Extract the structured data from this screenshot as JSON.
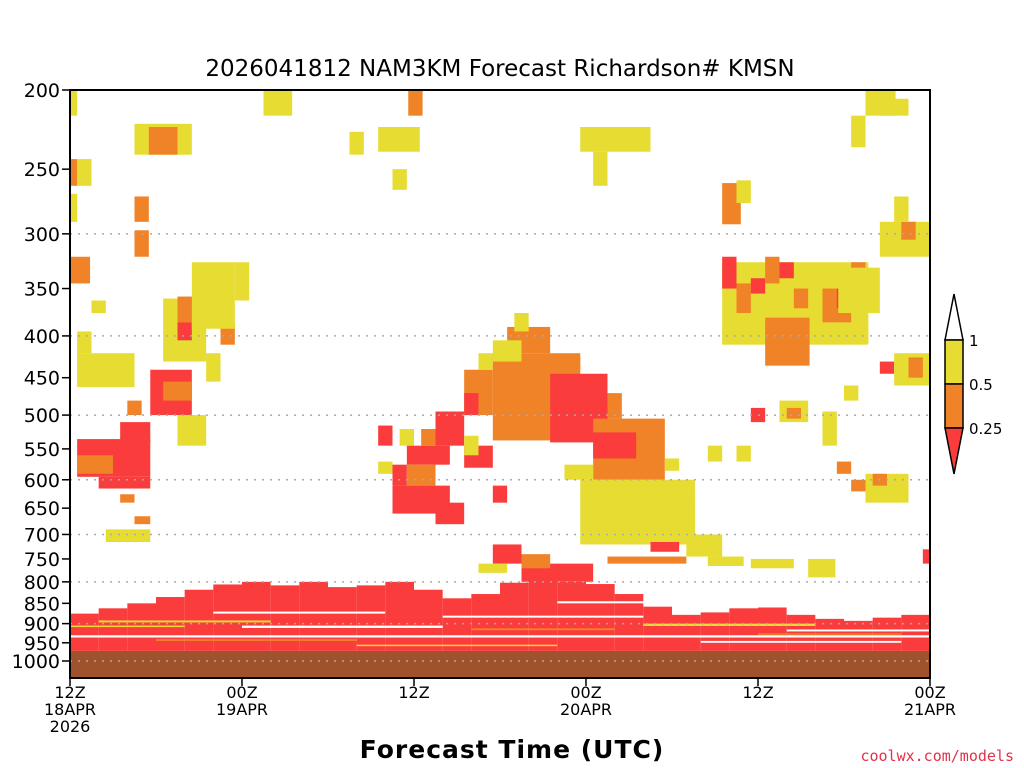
{
  "chart_data": {
    "type": "heatmap",
    "title": "2026041812 NAM3KM Forecast Richardson# KMSN",
    "xlabel": "Forecast Time (UTC)",
    "ylabel": "",
    "credit": "coolwx.com/models",
    "x_units": "forecast hour",
    "xlim": [
      0,
      60
    ],
    "ylim": [
      200,
      1049
    ],
    "y_scale": "log",
    "y_ticks": [
      "200",
      "250",
      "300",
      "350",
      "400",
      "450",
      "500",
      "550",
      "600",
      "650",
      "700",
      "750",
      "800",
      "850",
      "900",
      "950",
      "1000"
    ],
    "y_tick_values": [
      200,
      250,
      300,
      350,
      400,
      450,
      500,
      550,
      600,
      650,
      700,
      750,
      800,
      850,
      900,
      950,
      1000
    ],
    "grid_pressures": [
      300,
      400,
      500,
      600,
      700,
      800,
      900,
      1000
    ],
    "x_ticks": [
      {
        "hour": 0,
        "label": [
          "12Z",
          "18APR",
          "2026"
        ]
      },
      {
        "hour": 12,
        "label": [
          "00Z",
          "19APR"
        ]
      },
      {
        "hour": 24,
        "label": [
          "12Z"
        ]
      },
      {
        "hour": 36,
        "label": [
          "00Z",
          "20APR"
        ]
      },
      {
        "hour": 48,
        "label": [
          "12Z"
        ]
      },
      {
        "hour": 60,
        "label": [
          "00Z",
          "21APR"
        ]
      }
    ],
    "legend": {
      "placement": "right",
      "levels": [
        "1",
        "0.5",
        "0.25"
      ],
      "categories": [
        {
          "key": "w",
          "range": "> 1",
          "color": "#ffffff"
        },
        {
          "key": "y",
          "range": "0.5 - 1",
          "color": "#e6dc32"
        },
        {
          "key": "o",
          "range": "0.25 - 0.5",
          "color": "#f08228"
        },
        {
          "key": "r",
          "range": "< 0.25",
          "color": "#fa3c3c"
        }
      ]
    },
    "ground_color": "#a0522d",
    "surface_pressure": 972,
    "boundary_layer": {
      "hour_step": 2,
      "category": "r",
      "top_pressure": [
        875,
        862,
        850,
        835,
        818,
        806,
        800,
        808,
        800,
        812,
        808,
        800,
        818,
        838,
        828,
        802,
        795,
        800,
        805,
        828,
        858,
        878,
        872,
        862,
        860,
        878,
        888,
        893,
        885,
        878
      ]
    },
    "cells": [
      [
        0,
        0.5,
        200,
        215,
        "y"
      ],
      [
        0,
        0.5,
        243,
        262,
        "o"
      ],
      [
        0.5,
        1.5,
        243,
        262,
        "y"
      ],
      [
        0,
        0.5,
        268,
        290,
        "y"
      ],
      [
        0,
        1.4,
        320,
        345,
        "o"
      ],
      [
        1.5,
        2.5,
        362,
        375,
        "y"
      ],
      [
        0.5,
        4.5,
        420,
        462,
        "y"
      ],
      [
        0.5,
        1.5,
        395,
        420,
        "y"
      ],
      [
        0.5,
        5.6,
        535,
        595,
        "r"
      ],
      [
        0.5,
        3,
        560,
        590,
        "o"
      ],
      [
        3.5,
        5.6,
        510,
        540,
        "r"
      ],
      [
        3.5,
        4.5,
        595,
        605,
        "r"
      ],
      [
        2,
        5.6,
        595,
        615,
        "r"
      ],
      [
        3.5,
        4.5,
        625,
        640,
        "o"
      ],
      [
        2.5,
        5.6,
        690,
        715,
        "y"
      ],
      [
        4.5,
        5.6,
        665,
        680,
        "o"
      ],
      [
        5.6,
        8.5,
        440,
        500,
        "r"
      ],
      [
        6.5,
        8.5,
        455,
        480,
        "o"
      ],
      [
        7.5,
        9.5,
        500,
        545,
        "y"
      ],
      [
        4,
        5,
        480,
        500,
        "o"
      ],
      [
        6.5,
        9.5,
        360,
        430,
        "y"
      ],
      [
        7.5,
        9.5,
        358,
        385,
        "o"
      ],
      [
        7.5,
        8.5,
        385,
        405,
        "r"
      ],
      [
        10.5,
        11.5,
        385,
        410,
        "o"
      ],
      [
        8.5,
        11.5,
        325,
        392,
        "y"
      ],
      [
        9.5,
        10.5,
        420,
        455,
        "y"
      ],
      [
        11.5,
        12.5,
        325,
        362,
        "y"
      ],
      [
        4.5,
        8.5,
        220,
        240,
        "y"
      ],
      [
        5.5,
        7.5,
        222,
        240,
        "o"
      ],
      [
        4.5,
        5.5,
        270,
        290,
        "o"
      ],
      [
        4.5,
        5.5,
        297,
        320,
        "o"
      ],
      [
        13.5,
        15.5,
        200,
        215,
        "y"
      ],
      [
        23.6,
        24.6,
        200,
        215,
        "o"
      ],
      [
        21.5,
        24.4,
        222,
        238,
        "y"
      ],
      [
        19.5,
        20.5,
        225,
        240,
        "y"
      ],
      [
        22.5,
        23.5,
        250,
        265,
        "y"
      ],
      [
        35.6,
        40.5,
        222,
        238,
        "y"
      ],
      [
        36.5,
        37.5,
        238,
        262,
        "y"
      ],
      [
        21.5,
        22.5,
        515,
        545,
        "r"
      ],
      [
        21.5,
        22.5,
        570,
        590,
        "y"
      ],
      [
        22.5,
        23.5,
        575,
        610,
        "r"
      ],
      [
        23.5,
        26.5,
        545,
        575,
        "r"
      ],
      [
        23.5,
        25.5,
        575,
        610,
        "o"
      ],
      [
        25.5,
        27.5,
        495,
        545,
        "r"
      ],
      [
        24.5,
        25.5,
        520,
        545,
        "o"
      ],
      [
        22.5,
        26.5,
        610,
        660,
        "r"
      ],
      [
        25.5,
        27.5,
        640,
        680,
        "r"
      ],
      [
        23,
        24,
        520,
        545,
        "y"
      ],
      [
        27.5,
        29.5,
        545,
        580,
        "r"
      ],
      [
        29.5,
        30.5,
        610,
        640,
        "r"
      ],
      [
        27.5,
        28.5,
        530,
        560,
        "y"
      ],
      [
        27.5,
        29.5,
        440,
        500,
        "o"
      ],
      [
        27.5,
        28.5,
        470,
        500,
        "r"
      ],
      [
        28.5,
        29.5,
        420,
        440,
        "y"
      ],
      [
        29.5,
        35.6,
        420,
        537,
        "o"
      ],
      [
        30.5,
        33.5,
        390,
        420,
        "o"
      ],
      [
        31,
        32,
        375,
        395,
        "y"
      ],
      [
        29.5,
        31.5,
        405,
        430,
        "y"
      ],
      [
        32.5,
        35.6,
        425,
        440,
        "o"
      ],
      [
        33.5,
        37.5,
        445,
        540,
        "r"
      ],
      [
        34.5,
        37.5,
        455,
        500,
        "r"
      ],
      [
        36.5,
        41.5,
        505,
        600,
        "o"
      ],
      [
        36.5,
        39.5,
        525,
        565,
        "r"
      ],
      [
        37.5,
        38.5,
        470,
        505,
        "o"
      ],
      [
        35.6,
        43.6,
        600,
        720,
        "y"
      ],
      [
        38.5,
        43.6,
        630,
        720,
        "y"
      ],
      [
        34.5,
        36.5,
        575,
        600,
        "y"
      ],
      [
        41.5,
        42.5,
        565,
        585,
        "y"
      ],
      [
        31.5,
        36.5,
        760,
        800,
        "r"
      ],
      [
        29.5,
        31.5,
        720,
        760,
        "r"
      ],
      [
        31.5,
        33.5,
        740,
        770,
        "o"
      ],
      [
        28.5,
        30.5,
        760,
        780,
        "y"
      ],
      [
        40.5,
        42.5,
        715,
        735,
        "r"
      ],
      [
        43,
        45.5,
        700,
        745,
        "y"
      ],
      [
        44.5,
        47,
        745,
        765,
        "y"
      ],
      [
        37.5,
        43,
        745,
        760,
        "o"
      ],
      [
        45.5,
        46.8,
        260,
        292,
        "o"
      ],
      [
        46.5,
        47.5,
        258,
        275,
        "y"
      ],
      [
        45.5,
        55.7,
        325,
        410,
        "y"
      ],
      [
        45.5,
        46.5,
        320,
        350,
        "r"
      ],
      [
        46.5,
        47.5,
        345,
        375,
        "o"
      ],
      [
        47.5,
        48.5,
        340,
        355,
        "r"
      ],
      [
        48.5,
        51.6,
        380,
        435,
        "o"
      ],
      [
        48.5,
        49.5,
        320,
        345,
        "o"
      ],
      [
        49.5,
        50.5,
        325,
        340,
        "r"
      ],
      [
        50.5,
        51.5,
        350,
        370,
        "o"
      ],
      [
        52.5,
        54.5,
        350,
        385,
        "o"
      ],
      [
        53.5,
        54.5,
        350,
        370,
        "r"
      ],
      [
        54.5,
        55.5,
        325,
        345,
        "o"
      ],
      [
        53.6,
        56.5,
        330,
        375,
        "y"
      ],
      [
        55.5,
        57.6,
        200,
        215,
        "y"
      ],
      [
        54.5,
        55.5,
        215,
        235,
        "y"
      ],
      [
        56.5,
        58.5,
        205,
        215,
        "y"
      ],
      [
        56.5,
        60,
        290,
        320,
        "y"
      ],
      [
        58,
        59,
        290,
        305,
        "o"
      ],
      [
        57.5,
        58.5,
        270,
        290,
        "y"
      ],
      [
        56.5,
        57.5,
        430,
        445,
        "r"
      ],
      [
        57.5,
        60,
        420,
        460,
        "y"
      ],
      [
        58.5,
        59.5,
        425,
        450,
        "o"
      ],
      [
        47.5,
        48.5,
        490,
        510,
        "r"
      ],
      [
        49.5,
        51.5,
        480,
        510,
        "y"
      ],
      [
        50,
        51,
        490,
        505,
        "o"
      ],
      [
        52.5,
        53.5,
        495,
        545,
        "y"
      ],
      [
        54,
        55,
        460,
        480,
        "y"
      ],
      [
        54.5,
        56.5,
        600,
        620,
        "o"
      ],
      [
        55.5,
        58.5,
        590,
        640,
        "y"
      ],
      [
        56,
        57,
        590,
        610,
        "o"
      ],
      [
        53.5,
        54.5,
        570,
        590,
        "o"
      ],
      [
        51.5,
        53.4,
        750,
        790,
        "y"
      ],
      [
        47.5,
        50.5,
        750,
        770,
        "y"
      ],
      [
        59.5,
        60,
        730,
        760,
        "r"
      ],
      [
        44.5,
        45.5,
        545,
        570,
        "y"
      ],
      [
        46.5,
        47.5,
        545,
        570,
        "y"
      ]
    ],
    "stripes": [
      [
        0,
        60,
        930,
        936,
        "w"
      ],
      [
        2,
        14,
        892,
        897,
        "y"
      ],
      [
        12,
        26,
        905,
        911,
        "w"
      ],
      [
        26,
        40,
        880,
        885,
        "w"
      ],
      [
        34,
        48,
        845,
        850,
        "w"
      ],
      [
        40,
        52,
        900,
        906,
        "y"
      ],
      [
        50,
        60,
        915,
        920,
        "w"
      ],
      [
        6,
        20,
        940,
        945,
        "o"
      ],
      [
        20,
        34,
        955,
        959,
        "y"
      ],
      [
        44,
        58,
        945,
        950,
        "w"
      ],
      [
        10,
        22,
        870,
        875,
        "w"
      ],
      [
        28,
        38,
        912,
        917,
        "o"
      ],
      [
        48,
        58,
        925,
        929,
        "o"
      ],
      [
        0,
        8,
        905,
        909,
        "y"
      ]
    ]
  }
}
